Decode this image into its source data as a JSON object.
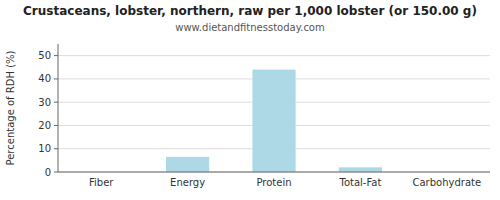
{
  "chart_data": {
    "type": "bar",
    "title": "Crustaceans, lobster, northern, raw per 1,000 lobster (or 150.00 g)",
    "subtitle": "www.dietandfitnesstoday.com",
    "categories": [
      "Fiber",
      "Energy",
      "Protein",
      "Total-Fat",
      "Carbohydrate"
    ],
    "values": [
      0,
      6.5,
      44,
      2,
      0
    ],
    "color": "#add8e6",
    "ylabel": "Percentage of RDH (%)",
    "ylim": [
      0,
      55
    ],
    "yticks": [
      0,
      10,
      20,
      30,
      40,
      50
    ],
    "grid": true
  }
}
